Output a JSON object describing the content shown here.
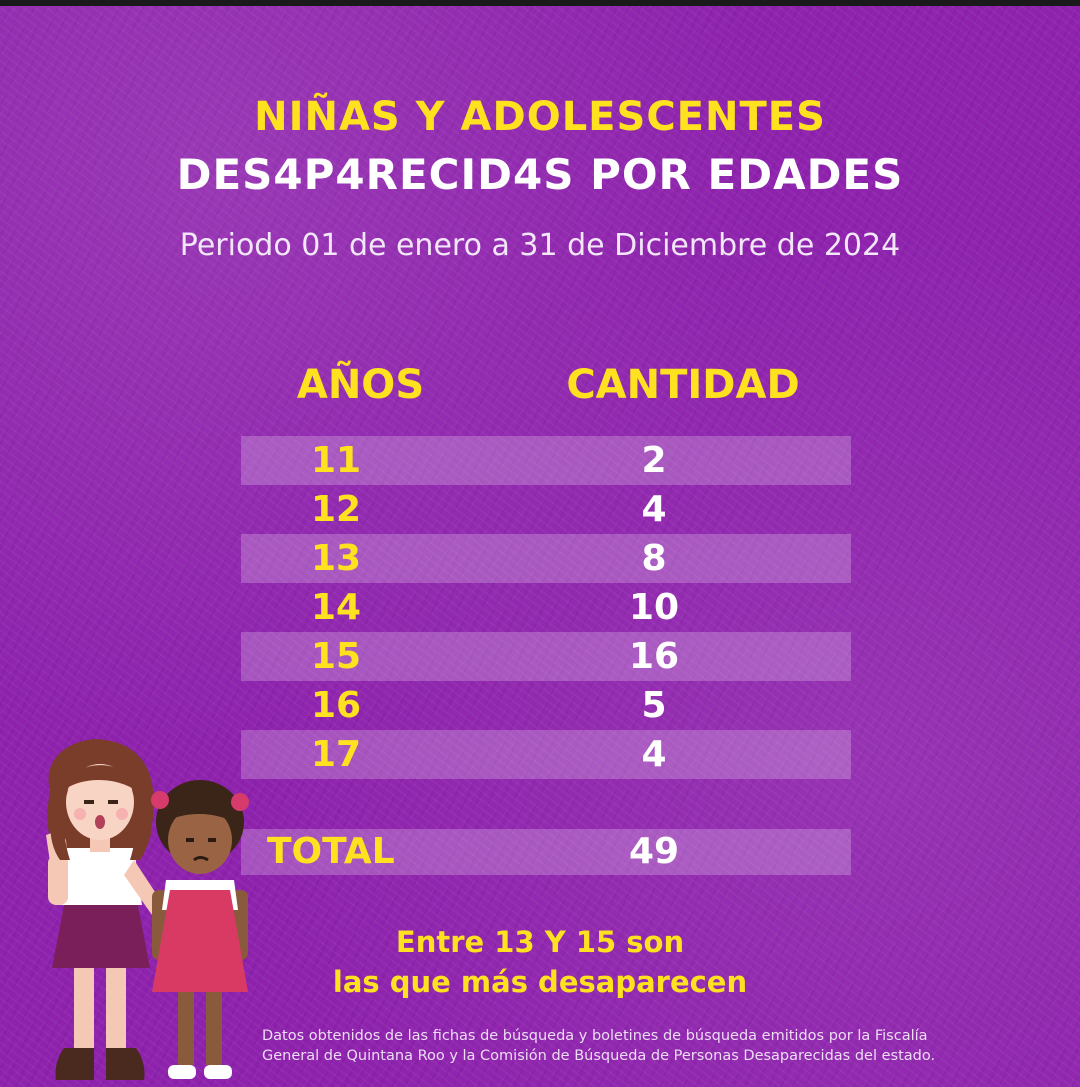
{
  "title": {
    "line1": "NIÑAS Y ADOLESCENTES",
    "line2": "DES4P4RECID4S POR EDADES"
  },
  "subtitle": "Periodo 01 de enero a 31 de Diciembre de 2024",
  "table": {
    "headers": {
      "years": "AÑOS",
      "quantity": "CANTIDAD"
    },
    "rows": [
      {
        "age": "11",
        "count": "2"
      },
      {
        "age": "12",
        "count": "4"
      },
      {
        "age": "13",
        "count": "8"
      },
      {
        "age": "14",
        "count": "10"
      },
      {
        "age": "15",
        "count": "16"
      },
      {
        "age": "16",
        "count": "5"
      },
      {
        "age": "17",
        "count": "4"
      }
    ],
    "total": {
      "label": "TOTAL",
      "value": "49"
    }
  },
  "note": {
    "line1": "Entre 13 Y 15 son",
    "line2": "las que más desaparecen"
  },
  "footer": {
    "line1": "Datos obtenidos de las fichas de búsqueda y boletines de búsqueda emitidos por la Fiscalía",
    "line2": "General de Quintana Roo y la Comisión de Búsqueda de Personas Desaparecidas del estado."
  },
  "colors": {
    "background": "#8e22ad",
    "accent_yellow": "#ffe21f",
    "text_white": "#ffffff"
  },
  "illustration": {
    "icon": "two-girls-stop-gesture-illustration"
  }
}
